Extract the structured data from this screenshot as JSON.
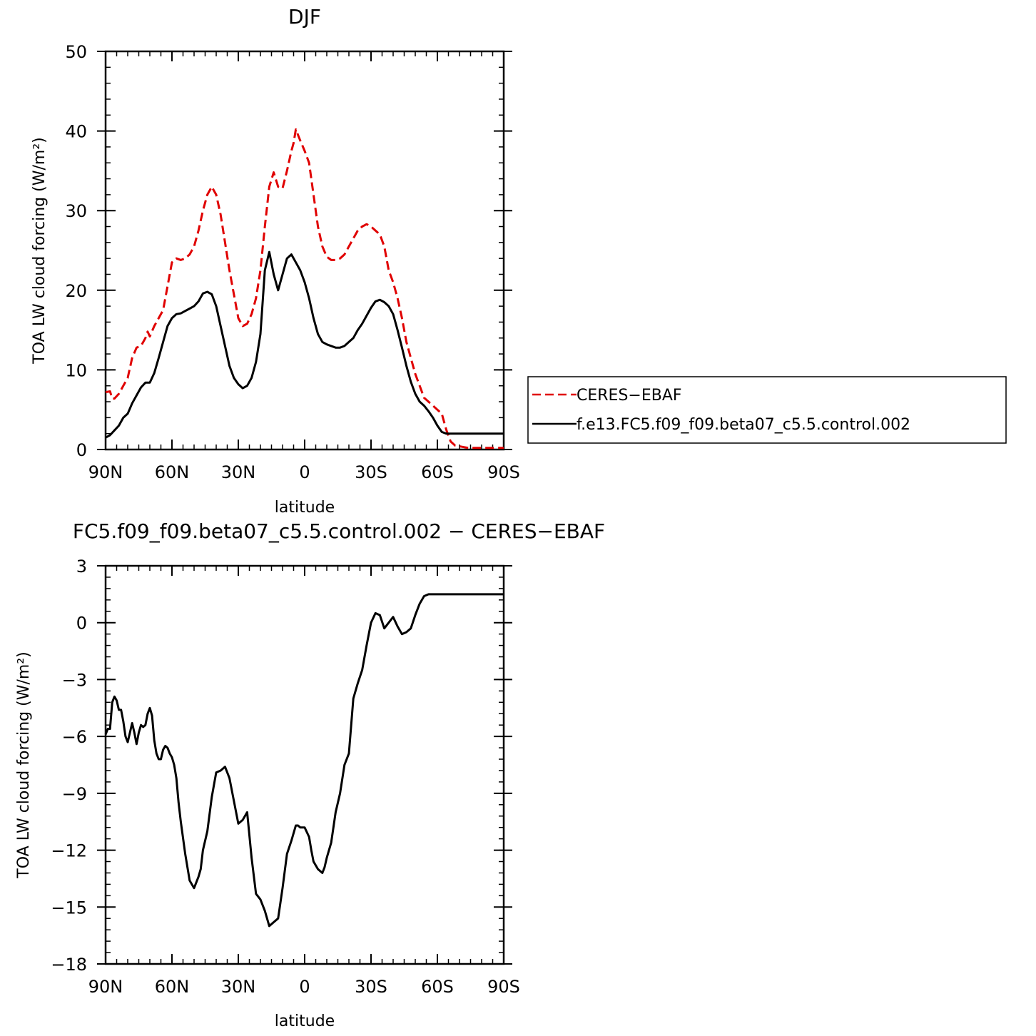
{
  "chart_data": [
    {
      "type": "line",
      "title": "DJF",
      "xlabel": "latitude",
      "ylabel": "TOA LW cloud forcing (W/m²)",
      "xlim": [
        90,
        -90
      ],
      "ylim": [
        0,
        50
      ],
      "xtick_labels": [
        "90N",
        "60N",
        "30N",
        "0",
        "30S",
        "60S",
        "90S"
      ],
      "xtick_values": [
        90,
        60,
        30,
        0,
        -30,
        -60,
        -90
      ],
      "ytick_labels": [
        "0",
        "10",
        "20",
        "30",
        "40",
        "50"
      ],
      "ytick_values": [
        0,
        10,
        20,
        30,
        40,
        50
      ],
      "legend_position": "right",
      "series": [
        {
          "name": "CERES−EBAF",
          "color": "#e00000",
          "dash": "dashed",
          "x": [
            90,
            88,
            87,
            86,
            84,
            82,
            80,
            78,
            76,
            74,
            72,
            71,
            70,
            68,
            66,
            64,
            62,
            60,
            58,
            56,
            54,
            52,
            50,
            48,
            46,
            44,
            42,
            40,
            38,
            36,
            34,
            32,
            30,
            28,
            26,
            24,
            22,
            20,
            18,
            16,
            14,
            12,
            10,
            8,
            6,
            5,
            4,
            2,
            0,
            -2,
            -4,
            -6,
            -8,
            -10,
            -12,
            -14,
            -16,
            -18,
            -20,
            -22,
            -24,
            -26,
            -28,
            -30,
            -32,
            -34,
            -36,
            -38,
            -40,
            -42,
            -44,
            -46,
            -48,
            -50,
            -52,
            -54,
            -56,
            -58,
            -60,
            -62,
            -64,
            -66,
            -68,
            -70,
            -72,
            -74,
            -76,
            -78,
            -80,
            -82,
            -84,
            -86,
            -88,
            -90
          ],
          "y": [
            7.2,
            7.3,
            6.4,
            6.4,
            7.0,
            8.0,
            9.0,
            11.5,
            12.8,
            13.0,
            14.0,
            14.8,
            14.2,
            15.5,
            16.5,
            17.5,
            20.5,
            23.5,
            24.0,
            23.8,
            24.0,
            24.5,
            25.5,
            27.5,
            30.0,
            32.0,
            33.0,
            32.0,
            29.5,
            26.0,
            22.5,
            19.5,
            16.5,
            15.5,
            15.8,
            17.0,
            19.0,
            22.5,
            28.0,
            33.0,
            34.8,
            33.0,
            32.8,
            35.0,
            37.5,
            38.5,
            40.2,
            38.8,
            37.5,
            36.0,
            32.0,
            28.0,
            25.5,
            24.2,
            23.8,
            23.8,
            24.0,
            24.5,
            25.5,
            26.5,
            27.5,
            28.0,
            28.3,
            28.0,
            27.5,
            27.0,
            25.5,
            22.5,
            21.0,
            19.0,
            16.5,
            13.5,
            11.5,
            9.5,
            8.0,
            6.5,
            6.0,
            5.5,
            5.0,
            4.5,
            2.5,
            1.0,
            0.5,
            0.4,
            0.3,
            0.2,
            0.2,
            0.2,
            0.2,
            0.2,
            0.2,
            0.2,
            0.2,
            0.2
          ]
        },
        {
          "name": "f.e13.FC5.f09_f09.beta07_c5.5.control.002",
          "color": "#000000",
          "dash": "solid",
          "x": [
            90,
            88,
            86,
            84,
            82,
            80,
            78,
            76,
            74,
            72,
            70,
            68,
            66,
            64,
            62,
            60,
            58,
            56,
            54,
            52,
            50,
            48,
            46,
            44,
            42,
            40,
            38,
            36,
            34,
            32,
            30,
            28,
            26,
            24,
            22,
            20,
            18,
            16,
            14,
            12,
            10,
            8,
            6,
            4,
            2,
            0,
            -2,
            -4,
            -6,
            -8,
            -10,
            -12,
            -14,
            -16,
            -18,
            -20,
            -22,
            -24,
            -26,
            -28,
            -30,
            -32,
            -34,
            -36,
            -38,
            -40,
            -42,
            -44,
            -46,
            -48,
            -50,
            -52,
            -54,
            -56,
            -58,
            -60,
            -62,
            -64,
            -66,
            -68,
            -70,
            -72,
            -74,
            -76,
            -78,
            -80,
            -82,
            -84,
            -86,
            -88,
            -90
          ],
          "y": [
            1.5,
            1.8,
            2.4,
            3.0,
            4.0,
            4.5,
            5.8,
            6.8,
            7.8,
            8.4,
            8.4,
            9.6,
            11.5,
            13.5,
            15.5,
            16.5,
            17.0,
            17.1,
            17.4,
            17.7,
            18.0,
            18.6,
            19.6,
            19.8,
            19.5,
            18.0,
            15.5,
            13.0,
            10.5,
            9.0,
            8.2,
            7.7,
            8.0,
            9.0,
            11.0,
            14.5,
            22.5,
            24.8,
            22.0,
            20.0,
            22.0,
            24.0,
            24.5,
            23.5,
            22.5,
            21.0,
            19.0,
            16.5,
            14.5,
            13.5,
            13.2,
            13.0,
            12.8,
            12.8,
            13.0,
            13.5,
            14.0,
            15.0,
            15.8,
            16.8,
            17.8,
            18.6,
            18.8,
            18.5,
            18.0,
            17.0,
            15.0,
            12.8,
            10.5,
            8.5,
            7.0,
            6.0,
            5.5,
            4.8,
            4.0,
            3.0,
            2.2,
            2.0,
            2.0,
            2.0,
            2.0,
            2.0,
            2.0,
            2.0,
            2.0,
            2.0,
            2.0,
            2.0,
            2.0,
            2.0,
            2.0
          ]
        }
      ]
    },
    {
      "type": "line",
      "title": "FC5.f09_f09.beta07_c5.5.control.002 − CERES−EBAF",
      "xlabel": "latitude",
      "ylabel": "TOA LW cloud forcing (W/m²)",
      "xlim": [
        90,
        -90
      ],
      "ylim": [
        -18,
        3
      ],
      "xtick_labels": [
        "90N",
        "60N",
        "30N",
        "0",
        "30S",
        "60S",
        "90S"
      ],
      "xtick_values": [
        90,
        60,
        30,
        0,
        -30,
        -60,
        -90
      ],
      "ytick_labels": [
        "3",
        "0",
        "−3",
        "−6",
        "−9",
        "−12",
        "−15",
        "−18"
      ],
      "ytick_values": [
        3,
        0,
        -3,
        -6,
        -9,
        -12,
        -15,
        -18
      ],
      "series": [
        {
          "color": "#000000",
          "dash": "solid",
          "x": [
            90,
            89,
            88,
            87,
            86,
            85,
            84,
            83,
            82,
            81,
            80,
            79,
            78,
            77,
            76,
            75,
            74,
            73,
            72,
            71,
            70,
            69,
            68,
            67,
            66,
            65,
            64,
            63,
            62,
            61,
            60,
            59,
            58,
            57,
            56,
            54,
            52,
            50,
            48,
            47,
            46,
            44,
            42,
            40,
            38,
            36,
            34,
            32,
            30,
            28,
            26,
            24,
            22,
            20,
            18,
            16,
            14,
            12,
            10,
            8,
            6,
            4,
            3,
            2,
            0,
            -2,
            -3,
            -4,
            -6,
            -8,
            -9,
            -10,
            -12,
            -14,
            -16,
            -18,
            -20,
            -22,
            -24,
            -26,
            -28,
            -30,
            -32,
            -34,
            -36,
            -38,
            -40,
            -42,
            -44,
            -46,
            -48,
            -50,
            -52,
            -54,
            -56,
            -58,
            -60,
            -61,
            -62,
            -64,
            -66,
            -68,
            -70,
            -71,
            -72,
            -74,
            -76,
            -78,
            -80,
            -82,
            -84,
            -86,
            -88,
            -90
          ],
          "y": [
            -5.9,
            -5.6,
            -5.6,
            -4.2,
            -3.9,
            -4.1,
            -4.6,
            -4.6,
            -5.2,
            -6.0,
            -6.3,
            -5.8,
            -5.3,
            -5.8,
            -6.4,
            -5.8,
            -5.4,
            -5.5,
            -5.4,
            -4.8,
            -4.5,
            -4.9,
            -6.2,
            -6.9,
            -7.2,
            -7.2,
            -6.7,
            -6.5,
            -6.6,
            -6.9,
            -7.1,
            -7.5,
            -8.2,
            -9.5,
            -10.5,
            -12.2,
            -13.6,
            -14.0,
            -13.4,
            -13.0,
            -12.0,
            -11.0,
            -9.2,
            -7.9,
            -7.8,
            -7.6,
            -8.2,
            -9.4,
            -10.6,
            -10.4,
            -10.0,
            -12.4,
            -14.3,
            -14.6,
            -15.2,
            -16.0,
            -15.8,
            -15.6,
            -14.0,
            -12.2,
            -11.5,
            -10.7,
            -10.7,
            -10.8,
            -10.8,
            -11.3,
            -12.0,
            -12.6,
            -13.0,
            -13.2,
            -12.9,
            -12.4,
            -11.6,
            -10.0,
            -9.0,
            -7.5,
            -6.9,
            -4.0,
            -3.2,
            -2.5,
            -1.2,
            0.0,
            0.5,
            0.4,
            -0.3,
            0.0,
            0.3,
            -0.2,
            -0.6,
            -0.5,
            -0.3,
            0.4,
            1.0,
            1.4,
            1.5,
            1.5,
            1.5,
            1.5,
            1.5,
            1.5,
            1.5,
            1.5,
            1.5,
            1.5,
            1.5,
            1.5,
            1.5,
            1.5,
            1.5,
            1.5,
            1.5,
            1.5,
            1.5,
            1.5
          ]
        }
      ]
    }
  ]
}
